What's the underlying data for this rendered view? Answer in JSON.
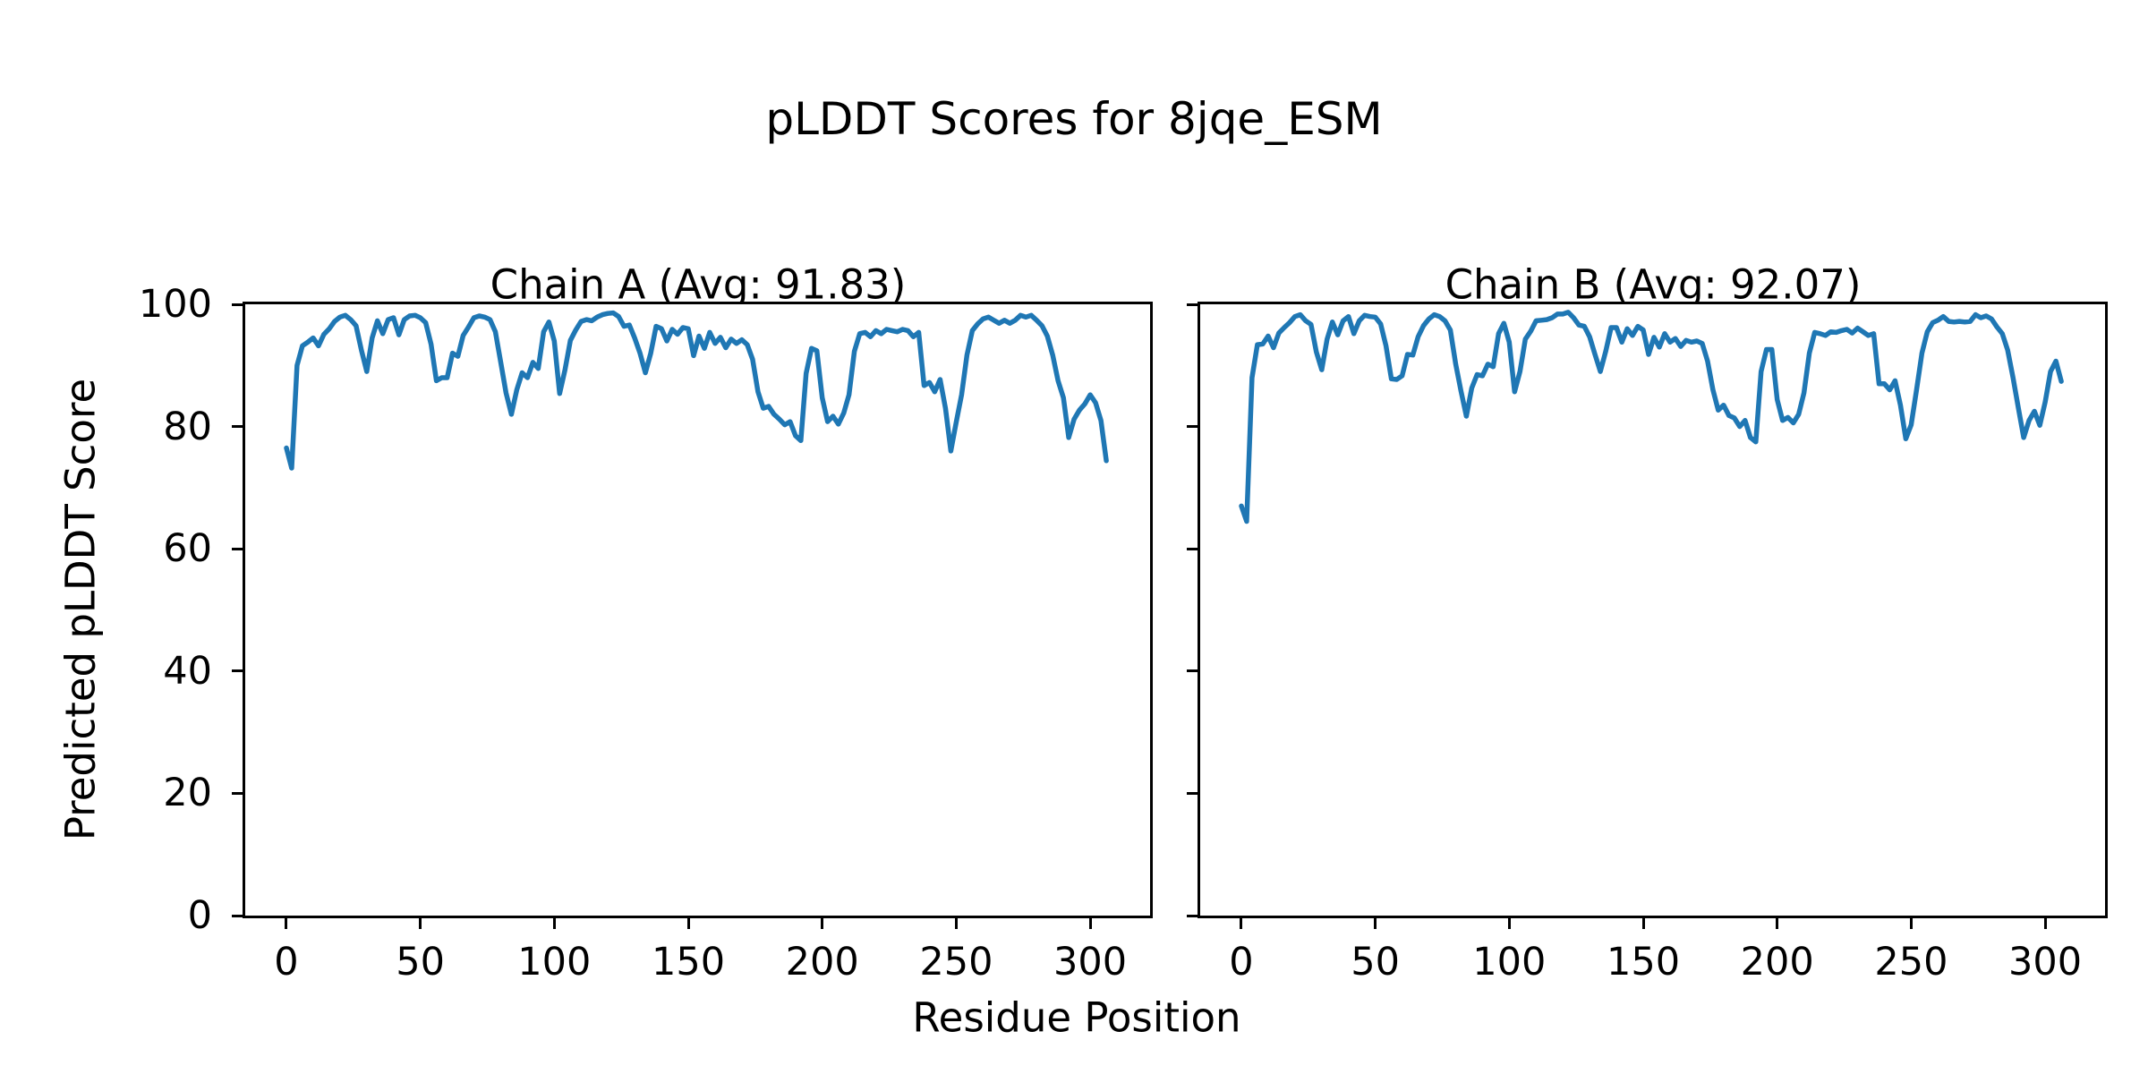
{
  "figure": {
    "title": "pLDDT Scores for 8jqe_ESM",
    "xlabel": "Residue Position",
    "ylabel": "Predicted pLDDT Score",
    "background_color": "#ffffff",
    "text_color": "#000000"
  },
  "chart_data": [
    {
      "type": "line",
      "title": "Chain A (Avg: 91.83)",
      "chain": "A",
      "average_plddt": 91.83,
      "line_color": "#1f77b4",
      "xlim": [
        -15.35,
        322.35
      ],
      "ylim": [
        0,
        100
      ],
      "x_ticks": [
        0,
        50,
        100,
        150,
        200,
        250,
        300
      ],
      "y_ticks": [
        0,
        20,
        40,
        60,
        80,
        100
      ],
      "x_start": 0,
      "x_step": 2,
      "values": [
        76.5,
        73.2,
        90.0,
        93.2,
        93.8,
        94.5,
        93.2,
        95.1,
        96.0,
        97.2,
        97.9,
        98.2,
        97.5,
        96.5,
        92.5,
        89.0,
        94.5,
        97.3,
        95.2,
        97.5,
        97.8,
        95.0,
        97.5,
        98.1,
        98.2,
        97.8,
        97.0,
        93.5,
        87.5,
        88.0,
        88.0,
        92.0,
        91.5,
        94.9,
        96.3,
        97.8,
        98.1,
        97.9,
        97.5,
        95.5,
        90.5,
        85.5,
        82.0,
        86.0,
        88.8,
        88.0,
        90.5,
        89.5,
        95.5,
        97.1,
        94.0,
        85.4,
        89.3,
        94.1,
        95.8,
        97.2,
        97.5,
        97.3,
        97.9,
        98.3,
        98.5,
        98.6,
        98.0,
        96.4,
        96.6,
        94.5,
        92.0,
        88.8,
        92.0,
        96.4,
        96.0,
        94.0,
        95.9,
        95.1,
        96.2,
        96.0,
        91.6,
        94.8,
        92.8,
        95.4,
        93.6,
        94.6,
        92.9,
        94.3,
        93.6,
        94.2,
        93.4,
        91.0,
        85.7,
        83.0,
        83.3,
        82.0,
        81.2,
        80.3,
        80.8,
        78.5,
        77.7,
        88.7,
        92.8,
        92.4,
        84.7,
        80.8,
        81.7,
        80.4,
        82.2,
        85.2,
        92.3,
        95.2,
        95.4,
        94.7,
        95.7,
        95.2,
        95.9,
        95.7,
        95.5,
        95.9,
        95.7,
        94.7,
        95.4,
        86.7,
        87.2,
        85.7,
        87.7,
        83.0,
        76.0,
        80.7,
        85.2,
        91.7,
        95.7,
        96.8,
        97.6,
        97.9,
        97.4,
        96.9,
        97.4,
        96.9,
        97.4,
        98.2,
        97.9,
        98.2,
        97.4,
        96.5,
        94.8,
        91.7,
        87.5,
        84.7,
        78.2,
        81.2,
        82.7,
        83.7,
        85.2,
        83.9,
        81.0,
        74.4
      ]
    },
    {
      "type": "line",
      "title": "Chain B (Avg: 92.07)",
      "chain": "B",
      "average_plddt": 92.07,
      "line_color": "#1f77b4",
      "xlim": [
        -15.35,
        322.35
      ],
      "ylim": [
        0,
        100
      ],
      "x_ticks": [
        0,
        50,
        100,
        150,
        200,
        250,
        300
      ],
      "y_ticks": [
        0,
        20,
        40,
        60,
        80,
        100
      ],
      "x_start": 0,
      "x_step": 2,
      "values": [
        67.0,
        64.5,
        88.0,
        93.4,
        93.5,
        94.8,
        92.9,
        95.3,
        96.2,
        97.0,
        98.0,
        98.3,
        97.3,
        96.7,
        92.2,
        89.3,
        94.3,
        97.1,
        95.0,
        97.3,
        98.0,
        95.2,
        97.3,
        98.2,
        98.0,
        97.9,
        96.8,
        93.2,
        87.8,
        87.7,
        88.3,
        91.8,
        91.7,
        94.7,
        96.5,
        97.6,
        98.3,
        98.0,
        97.3,
        95.8,
        90.2,
        85.8,
        81.7,
        86.3,
        88.5,
        88.3,
        90.2,
        89.8,
        95.2,
        96.9,
        93.8,
        85.7,
        89.0,
        94.3,
        95.6,
        97.3,
        97.4,
        97.5,
        97.8,
        98.4,
        98.4,
        98.7,
        97.8,
        96.6,
        96.4,
        94.7,
        91.8,
        89.0,
        92.3,
        96.2,
        96.2,
        93.8,
        96.0,
        94.9,
        96.4,
        95.8,
        91.8,
        94.6,
        93.0,
        95.2,
        93.8,
        94.4,
        93.1,
        94.1,
        93.8,
        94.0,
        93.6,
        90.7,
        86.0,
        82.7,
        83.5,
        81.8,
        81.4,
        80.0,
        81.0,
        78.2,
        77.5,
        89.0,
        92.6,
        92.6,
        84.4,
        81.0,
        81.5,
        80.6,
        82.0,
        85.5,
        92.0,
        95.4,
        95.2,
        94.9,
        95.5,
        95.4,
        95.7,
        95.9,
        95.3,
        96.1,
        95.5,
        94.9,
        95.2,
        87.0,
        87.0,
        86.0,
        87.5,
        83.5,
        78.0,
        80.3,
        86.0,
        92.0,
        95.5,
        97.0,
        97.4,
        98.0,
        97.2,
        97.1,
        97.2,
        97.1,
        97.2,
        98.3,
        97.8,
        98.1,
        97.6,
        96.3,
        95.2,
        92.5,
        88.0,
        83.0,
        78.2,
        81.0,
        82.5,
        80.2,
        84.0,
        89.0,
        90.7,
        87.4
      ]
    }
  ]
}
